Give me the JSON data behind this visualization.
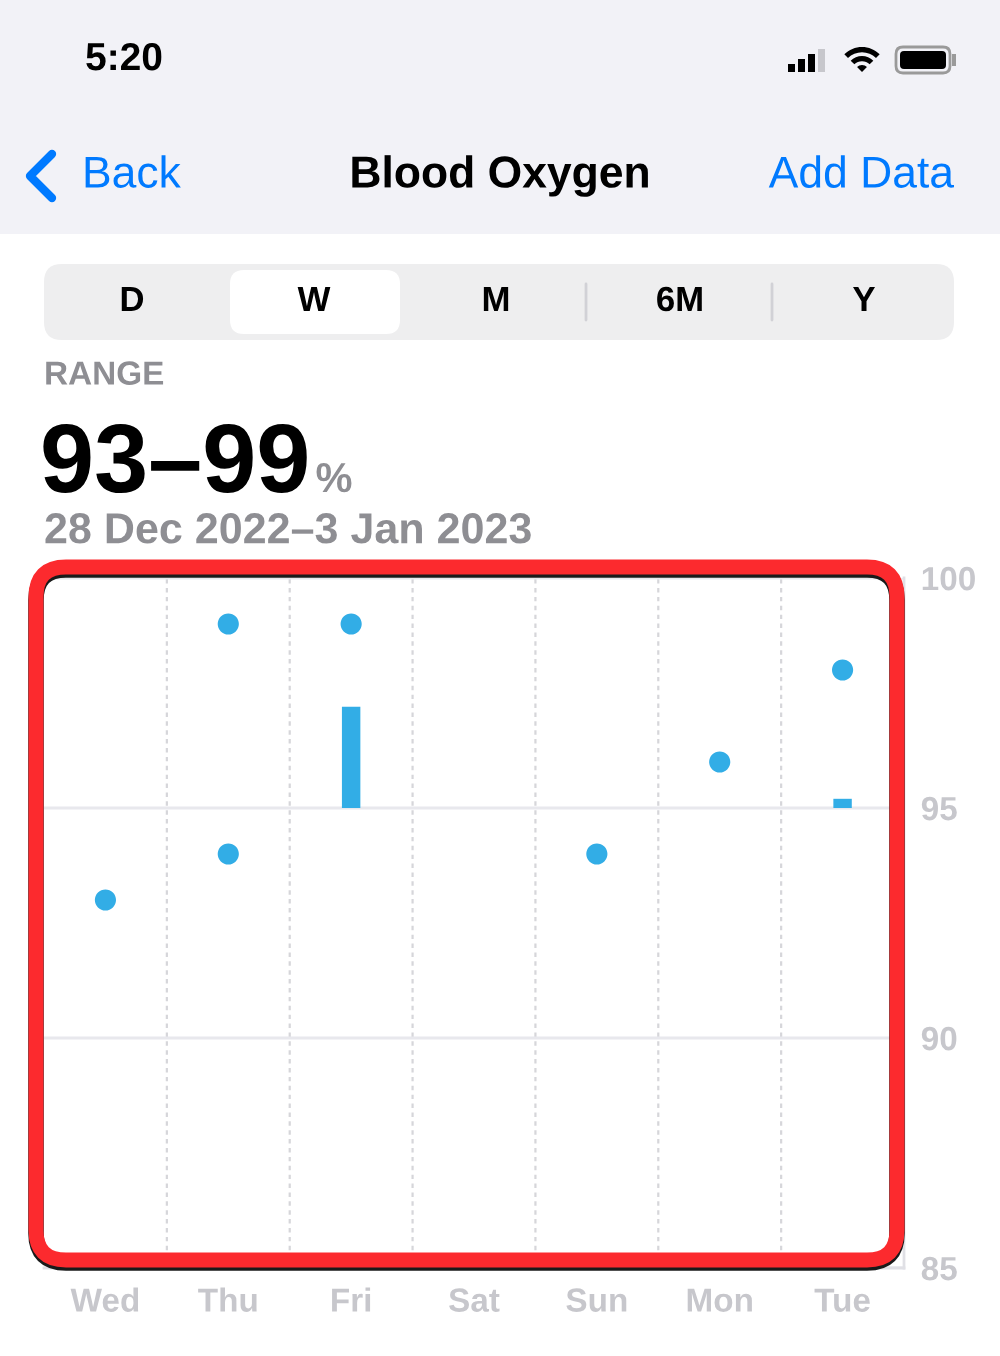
{
  "chart_data": {
    "type": "scatter",
    "title": "Blood Oxygen",
    "subtitle": "28 Dec 2022–3 Jan 2023",
    "annotations": [
      "5:20",
      "Back",
      "Add Data",
      "D",
      "W",
      "M",
      "6M",
      "Y",
      "RANGE",
      "93–99",
      "%"
    ],
    "categories": [
      "Wed",
      "Thu",
      "Fri",
      "Sat",
      "Sun",
      "Mon",
      "Tue"
    ],
    "series": [
      {
        "color": "#32ade6",
        "x": [
          "Wed",
          "Thu",
          "Thu",
          "Fri",
          "Sun",
          "Mon",
          "Tue"
        ],
        "values": [
          93,
          99,
          94,
          99,
          94,
          96,
          98
        ]
      },
      {
        "type": "bar",
        "color": "#32ade6",
        "base": [
          null,
          null,
          95,
          null,
          null,
          null,
          95
        ],
        "values": [
          null,
          null,
          2.2,
          null,
          null,
          null,
          0.2
        ]
      }
    ],
    "ylim": [
      85,
      100
    ],
    "yticks": [
      85,
      90,
      95,
      100
    ],
    "grid": true,
    "marker": "circle"
  }
}
